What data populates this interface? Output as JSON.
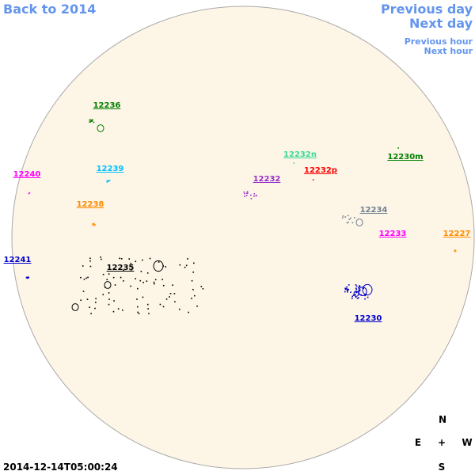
{
  "nav": {
    "back": "Back to 2014",
    "prev_day": "Previous day",
    "next_day": "Next day",
    "prev_hour": "Previous hour",
    "next_hour": "Next hour"
  },
  "regions": [
    {
      "label": "12236",
      "color": "#008000"
    },
    {
      "label": "12239",
      "color": "#00bfff"
    },
    {
      "label": "12240",
      "color": "#ff00ff"
    },
    {
      "label": "12238",
      "color": "#ff8c00"
    },
    {
      "label": "12241",
      "color": "#0000cd"
    },
    {
      "label": "12235",
      "color": "#000000"
    },
    {
      "label": "12232n",
      "color": "#3cd99a"
    },
    {
      "label": "12232p",
      "color": "#ff0000"
    },
    {
      "label": "12232",
      "color": "#9932cc"
    },
    {
      "label": "12230m",
      "color": "#008000"
    },
    {
      "label": "12234",
      "color": "#708090"
    },
    {
      "label": "12233",
      "color": "#ff00ff"
    },
    {
      "label": "12227",
      "color": "#ff8c00"
    },
    {
      "label": "12230",
      "color": "#0000cd"
    }
  ],
  "timestamp": "2014-12-14T05:00:24",
  "compass": {
    "n": "N",
    "e": "E",
    "center": "+",
    "w": "W",
    "s": "S"
  }
}
